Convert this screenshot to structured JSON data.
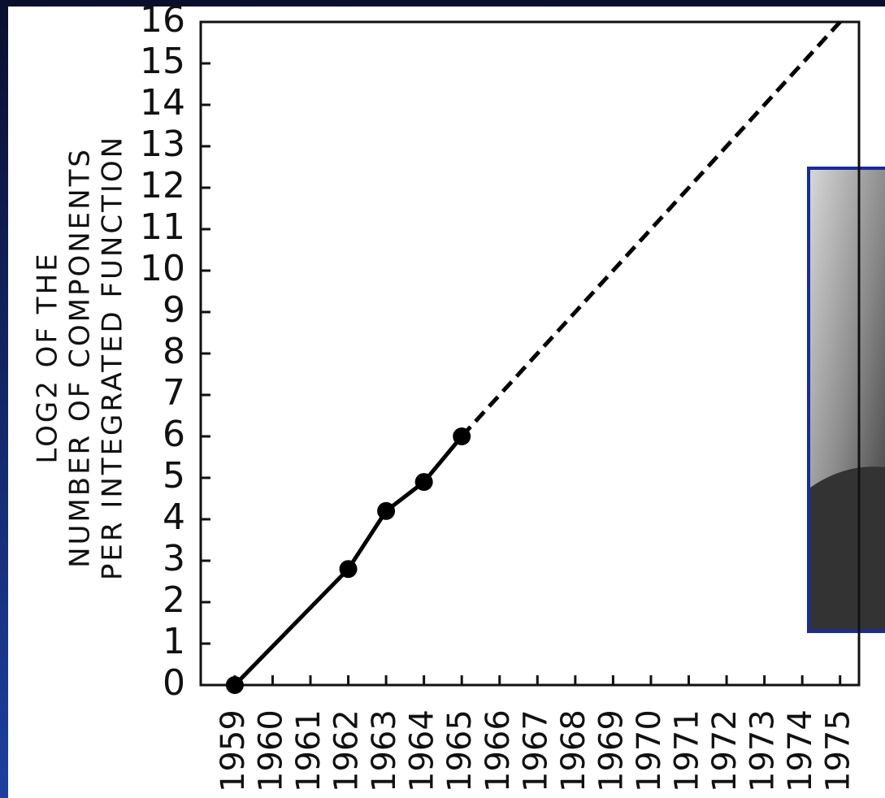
{
  "chart_data": {
    "type": "line",
    "y_label": [
      "LOG2 OF THE",
      "NUMBER OF COMPONENTS",
      "PER INTEGRATED FUNCTION"
    ],
    "series": [
      {
        "color": "#000000",
        "markers": true,
        "dashed": false,
        "x": [
          1959,
          1962,
          1963,
          1964,
          1965
        ],
        "values": [
          0,
          2.8,
          4.2,
          4.9,
          6
        ]
      },
      {
        "color": "#000000",
        "markers": false,
        "dashed": true,
        "x": [
          1965,
          1975
        ],
        "values": [
          6,
          16
        ]
      }
    ],
    "xlim": [
      1958.1,
      1975.5
    ],
    "xticks": [
      1959,
      1960,
      1961,
      1962,
      1963,
      1964,
      1965,
      1966,
      1967,
      1968,
      1969,
      1970,
      1971,
      1972,
      1973,
      1974,
      1975
    ],
    "ylim": [
      0,
      16
    ],
    "yticks": [
      0,
      1,
      2,
      3,
      4,
      5,
      6,
      7,
      8,
      9,
      10,
      11,
      12,
      13,
      14,
      15,
      16
    ],
    "grid": false
  }
}
